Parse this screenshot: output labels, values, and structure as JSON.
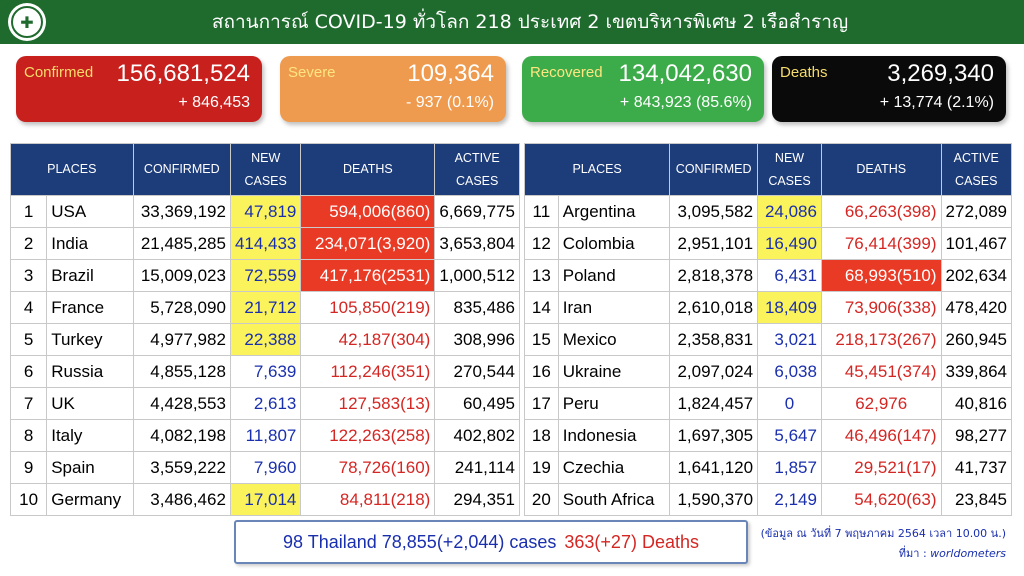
{
  "header": {
    "title": "สถานการณ์ COVID-19 ทั่วโลก 218 ประเทศ 2 เขตบริหารพิเศษ 2 เรือสำราญ",
    "logo_icon": "ministry-seal-icon"
  },
  "cards": {
    "confirmed": {
      "label": "Confirmed",
      "value": "156,681,524",
      "delta": "+ 846,453",
      "color": "#c8201d"
    },
    "severe": {
      "label": "Severe",
      "value": "109,364",
      "delta": "- 937 (0.1%)",
      "color": "#ee9a4f"
    },
    "recovered": {
      "label": "Recovered",
      "value": "134,042,630",
      "delta": "+ 843,923 (85.6%)",
      "color": "#3cac4a"
    },
    "deaths": {
      "label": "Deaths",
      "value": "3,269,340",
      "delta": "+ 13,774 (2.1%)",
      "color": "#0a0a0a"
    }
  },
  "table_headers": {
    "places": "PLACES",
    "confirmed": "CONFIRMED",
    "new_cases_1": "NEW",
    "new_cases_2": "CASES",
    "deaths": "DEATHS",
    "active_1": "ACTIVE",
    "active_2": "CASES"
  },
  "rows_left": [
    {
      "rank": "1",
      "place": "USA",
      "confirmed": "33,369,192",
      "new_cases": "47,819",
      "deaths": "594,006(860)",
      "active": "6,669,775"
    },
    {
      "rank": "2",
      "place": "India",
      "confirmed": "21,485,285",
      "new_cases": "414,433",
      "deaths": "234,071(3,920)",
      "active": "3,653,804"
    },
    {
      "rank": "3",
      "place": "Brazil",
      "confirmed": "15,009,023",
      "new_cases": "72,559",
      "deaths": "417,176(2531)",
      "active": "1,000,512"
    },
    {
      "rank": "4",
      "place": "France",
      "confirmed": "5,728,090",
      "new_cases": "21,712",
      "deaths": "105,850(219)",
      "active": "835,486"
    },
    {
      "rank": "5",
      "place": "Turkey",
      "confirmed": "4,977,982",
      "new_cases": "22,388",
      "deaths": "42,187(304)",
      "active": "308,996"
    },
    {
      "rank": "6",
      "place": "Russia",
      "confirmed": "4,855,128",
      "new_cases": "7,639",
      "deaths": "112,246(351)",
      "active": "270,544"
    },
    {
      "rank": "7",
      "place": "UK",
      "confirmed": "4,428,553",
      "new_cases": "2,613",
      "deaths": "127,583(13)",
      "active": "60,495"
    },
    {
      "rank": "8",
      "place": "Italy",
      "confirmed": "4,082,198",
      "new_cases": "11,807",
      "deaths": "122,263(258)",
      "active": "402,802"
    },
    {
      "rank": "9",
      "place": "Spain",
      "confirmed": "3,559,222",
      "new_cases": "7,960",
      "deaths": "78,726(160)",
      "active": "241,114"
    },
    {
      "rank": "10",
      "place": "Germany",
      "confirmed": "3,486,462",
      "new_cases": "17,014",
      "deaths": "84,811(218)",
      "active": "294,351"
    }
  ],
  "rows_right": [
    {
      "rank": "11",
      "place": "Argentina",
      "confirmed": "3,095,582",
      "new_cases": "24,086",
      "deaths": "66,263(398)",
      "active": "272,089"
    },
    {
      "rank": "12",
      "place": "Colombia",
      "confirmed": "2,951,101",
      "new_cases": "16,490",
      "deaths": "76,414(399)",
      "active": "101,467"
    },
    {
      "rank": "13",
      "place": "Poland",
      "confirmed": "2,818,378",
      "new_cases": "6,431",
      "deaths": "68,993(510)",
      "active": "202,634"
    },
    {
      "rank": "14",
      "place": "Iran",
      "confirmed": "2,610,018",
      "new_cases": "18,409",
      "deaths": "73,906(338)",
      "active": "478,420"
    },
    {
      "rank": "15",
      "place": "Mexico",
      "confirmed": "2,358,831",
      "new_cases": "3,021",
      "deaths": "218,173(267)",
      "active": "260,945"
    },
    {
      "rank": "16",
      "place": "Ukraine",
      "confirmed": "2,097,024",
      "new_cases": "6,038",
      "deaths": "45,451(374)",
      "active": "339,864"
    },
    {
      "rank": "17",
      "place": "Peru",
      "confirmed": "1,824,457",
      "new_cases": "0",
      "deaths": "62,976",
      "active": "40,816"
    },
    {
      "rank": "18",
      "place": "Indonesia",
      "confirmed": "1,697,305",
      "new_cases": "5,647",
      "deaths": "46,496(147)",
      "active": "98,277"
    },
    {
      "rank": "19",
      "place": "Czechia",
      "confirmed": "1,641,120",
      "new_cases": "1,857",
      "deaths": "29,521(17)",
      "active": "41,737"
    },
    {
      "rank": "20",
      "place": "South Africa",
      "confirmed": "1,590,370",
      "new_cases": "2,149",
      "deaths": "54,620(63)",
      "active": "23,845"
    }
  ],
  "thailand": {
    "text": "98 Thailand 78,855(+2,044) cases",
    "deaths": "363(+27) Deaths"
  },
  "footnote": {
    "date": "(ข้อมูล ณ วันที่ 7 พฤษภาคม 2564 เวลา 10.00 น.)",
    "source_label": "ที่มา :",
    "source": "worldometers"
  },
  "colors": {
    "title_bar": "#1f6b2e",
    "table_header": "#1d3c7a",
    "highlight_yellow": "#fbf35b",
    "highlight_red": "#e83a25",
    "new_cases_text": "#1a2fae",
    "deaths_text": "#d42622"
  }
}
